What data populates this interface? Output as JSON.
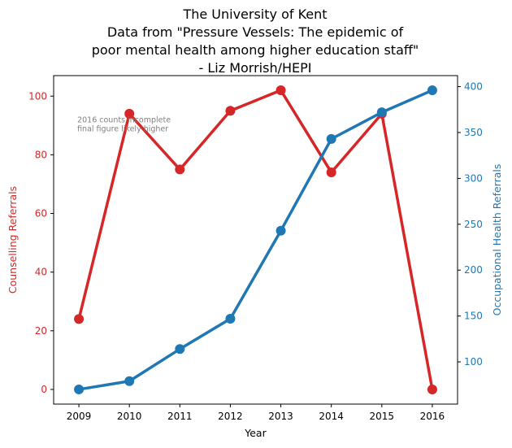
{
  "title_lines": [
    "The University of Kent",
    "Data from \"Pressure Vessels: The epidemic of",
    "poor mental health among higher education staff\"",
    "- Liz Morrish/HEPI"
  ],
  "chart_data": {
    "type": "line",
    "x": [
      2009,
      2010,
      2011,
      2012,
      2013,
      2014,
      2015,
      2016
    ],
    "xlabel": "Year",
    "xlim": [
      2008.5,
      2016.5
    ],
    "series": [
      {
        "name": "Counselling Referrals",
        "axis": "left",
        "color": "#d62728",
        "values": [
          24,
          94,
          75,
          95,
          102,
          74,
          94,
          0
        ]
      },
      {
        "name": "Occupational Health Referrals",
        "axis": "right",
        "color": "#1f77b4",
        "values": [
          70,
          79,
          114,
          147,
          243,
          343,
          372,
          396
        ]
      }
    ],
    "y_left": {
      "label": "Counselling Referrals",
      "color": "#d62728",
      "ylim": [
        -5,
        107
      ],
      "ticks": [
        0,
        20,
        40,
        60,
        80,
        100
      ]
    },
    "y_right": {
      "label": "Occupational Health Referrals",
      "color": "#1f77b4",
      "ylim": [
        54,
        412
      ],
      "ticks": [
        100,
        150,
        200,
        250,
        300,
        350,
        400
      ]
    },
    "annotation": {
      "lines": [
        "2016 counts incomplete",
        "final figure likely higher"
      ],
      "x": 2009,
      "y": 91
    },
    "grid": false,
    "legend": "none"
  }
}
